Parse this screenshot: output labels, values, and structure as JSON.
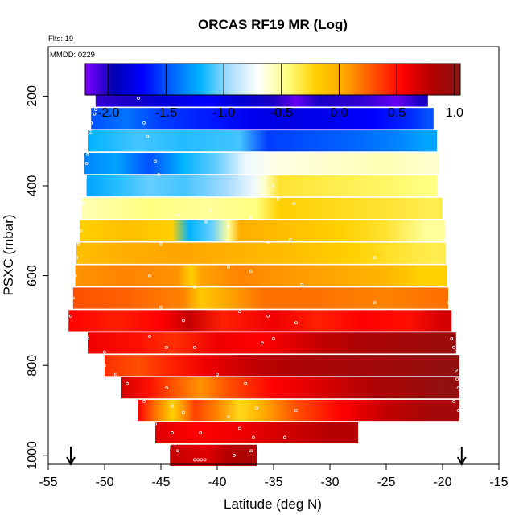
{
  "chart_data": {
    "type": "heatmap",
    "title": "ORCAS RF19 MR (Log)",
    "flights_label": "Flts: 19",
    "date_label": "MMDD: 0229",
    "xlabel": "Latitude (deg N)",
    "ylabel": "PSXC (mbar)",
    "xlim": [
      -55,
      -15
    ],
    "ylim": [
      1020,
      90
    ],
    "x_ticks": [
      -55,
      -50,
      -45,
      -40,
      -35,
      -30,
      -25,
      -20,
      -15
    ],
    "x_tick_labels": [
      "-55",
      "-50",
      "-45",
      "-40",
      "-35",
      "-30",
      "-25",
      "-20",
      "-15"
    ],
    "y_ticks": [
      200,
      400,
      600,
      800,
      1000
    ],
    "y_tick_labels": [
      "200",
      "400",
      "600",
      "800",
      "1000"
    ],
    "colorbar": {
      "min": -2.2,
      "max": 1.05,
      "ticks": [
        -2.0,
        -1.5,
        -1.0,
        -0.5,
        0.0,
        0.5,
        1.0
      ],
      "tick_labels": [
        "-2.0",
        "-1.5",
        "-1.0",
        "-0.5",
        "0.0",
        "0.5",
        "1.0"
      ],
      "colors": [
        "#7f00ff",
        "#0000b4",
        "#0000ff",
        "#0064ff",
        "#00b4ff",
        "#aaddff",
        "#ffffff",
        "#ffff80",
        "#ffd000",
        "#ffa500",
        "#ff5000",
        "#ff0000",
        "#b40000",
        "#8c1414"
      ]
    },
    "arrows": [
      -53,
      -18.3
    ],
    "rows": [
      {
        "p": 200,
        "lat_min": -50.8,
        "lat_max": -21.3,
        "segments": [
          [
            -50.8,
            -2.05
          ],
          [
            -48,
            -2.0
          ],
          [
            -45,
            -1.85
          ],
          [
            -41,
            -1.7
          ],
          [
            -38,
            -1.85
          ],
          [
            -35,
            -2.0
          ],
          [
            -33,
            -2.15
          ],
          [
            -31,
            -2.0
          ],
          [
            -27,
            -2.05
          ],
          [
            -24,
            -2.15
          ],
          [
            -22,
            -2.0
          ]
        ]
      },
      {
        "p": 250,
        "lat_min": -51.2,
        "lat_max": -20.8,
        "segments": [
          [
            -51.2,
            -1.5
          ],
          [
            -48,
            -1.4
          ],
          [
            -45,
            -1.55
          ],
          [
            -40,
            -1.65
          ],
          [
            -37,
            -1.75
          ],
          [
            -34,
            -1.8
          ],
          [
            -30,
            -1.75
          ],
          [
            -26,
            -1.7
          ],
          [
            -23,
            -1.6
          ],
          [
            -21.3,
            -1.5
          ]
        ]
      },
      {
        "p": 300,
        "lat_min": -51.5,
        "lat_max": -20.5,
        "segments": [
          [
            -51.5,
            -1.2
          ],
          [
            -47,
            -1.1
          ],
          [
            -43,
            -1.15
          ],
          [
            -38,
            -1.1
          ],
          [
            -35.5,
            -1.55
          ],
          [
            -32,
            -1.5
          ],
          [
            -28,
            -1.45
          ],
          [
            -24,
            -1.35
          ],
          [
            -21.5,
            -1.25
          ]
        ]
      },
      {
        "p": 350,
        "lat_min": -51.8,
        "lat_max": -20.3,
        "segments": [
          [
            -51.8,
            -1.35
          ],
          [
            -49,
            -1.25
          ],
          [
            -46,
            -1.5
          ],
          [
            -43,
            -1.2
          ],
          [
            -40,
            -1.05
          ],
          [
            -37.5,
            -0.75
          ],
          [
            -35,
            -0.65
          ],
          [
            -30,
            -0.6
          ],
          [
            -25,
            -0.55
          ],
          [
            -21.5,
            -0.6
          ]
        ]
      },
      {
        "p": 400,
        "lat_min": -51.6,
        "lat_max": -20.5,
        "segments": [
          [
            -51.6,
            -1.25
          ],
          [
            -49,
            -1.15
          ],
          [
            -46,
            -1.05
          ],
          [
            -43,
            -1.1
          ],
          [
            -39,
            -0.95
          ],
          [
            -36.8,
            -0.75
          ],
          [
            -35.8,
            -0.6
          ],
          [
            -34.5,
            -0.3
          ],
          [
            -30,
            -0.35
          ],
          [
            -25,
            -0.4
          ],
          [
            -22,
            -0.45
          ]
        ]
      },
      {
        "p": 450,
        "lat_min": -52.0,
        "lat_max": -20.0,
        "segments": [
          [
            -52.0,
            -0.55
          ],
          [
            -46,
            -0.45
          ],
          [
            -41,
            -0.5
          ],
          [
            -36.5,
            -0.45
          ],
          [
            -34.5,
            -0.2
          ],
          [
            -30,
            -0.25
          ],
          [
            -25,
            -0.3
          ],
          [
            -21.5,
            -0.35
          ]
        ]
      },
      {
        "p": 500,
        "lat_min": -52.2,
        "lat_max": -19.8,
        "segments": [
          [
            -52.2,
            -0.2
          ],
          [
            -48,
            -0.1
          ],
          [
            -44,
            -0.2
          ],
          [
            -42.5,
            -1.2
          ],
          [
            -40.5,
            -1.05
          ],
          [
            -39,
            -0.5
          ],
          [
            -38,
            0.0
          ],
          [
            -34,
            -0.1
          ],
          [
            -29,
            -0.2
          ],
          [
            -25,
            -0.3
          ],
          [
            -21.5,
            -0.5
          ]
        ]
      },
      {
        "p": 550,
        "lat_min": -52.5,
        "lat_max": -19.7,
        "segments": [
          [
            -52.5,
            -0.1
          ],
          [
            -48,
            0.0
          ],
          [
            -43,
            0.05
          ],
          [
            -40,
            0.0
          ],
          [
            -37,
            -0.05
          ],
          [
            -33,
            -0.1
          ],
          [
            -28,
            -0.2
          ],
          [
            -24,
            -0.3
          ],
          [
            -21,
            -0.35
          ]
        ]
      },
      {
        "p": 600,
        "lat_min": -52.6,
        "lat_max": -19.6,
        "segments": [
          [
            -52.6,
            0.1
          ],
          [
            -48,
            0.15
          ],
          [
            -43.5,
            0.1
          ],
          [
            -42.3,
            -0.2
          ],
          [
            -41.5,
            0.05
          ],
          [
            -38,
            0.15
          ],
          [
            -35,
            0.1
          ],
          [
            -30,
            0.05
          ],
          [
            -25,
            -0.05
          ],
          [
            -22,
            -0.2
          ]
        ]
      },
      {
        "p": 650,
        "lat_min": -52.8,
        "lat_max": -19.5,
        "segments": [
          [
            -52.8,
            0.3
          ],
          [
            -48,
            0.25
          ],
          [
            -43,
            0.15
          ],
          [
            -41.5,
            -0.15
          ],
          [
            -39,
            0.05
          ],
          [
            -36,
            0.2
          ],
          [
            -31,
            0.2
          ],
          [
            -25,
            0.15
          ],
          [
            -21,
            0.2
          ]
        ]
      },
      {
        "p": 700,
        "lat_min": -53.2,
        "lat_max": -19.2,
        "segments": [
          [
            -53.2,
            0.55
          ],
          [
            -49,
            0.45
          ],
          [
            -45,
            0.55
          ],
          [
            -42.5,
            0.75
          ],
          [
            -39.5,
            0.45
          ],
          [
            -35,
            0.6
          ],
          [
            -31,
            0.45
          ],
          [
            -27,
            0.55
          ],
          [
            -23,
            0.5
          ],
          [
            -20,
            0.7
          ]
        ]
      },
      {
        "p": 750,
        "lat_min": -51.5,
        "lat_max": -18.8,
        "segments": [
          [
            -51.5,
            0.6
          ],
          [
            -47,
            0.5
          ],
          [
            -44,
            0.4
          ],
          [
            -40,
            0.6
          ],
          [
            -36,
            0.55
          ],
          [
            -31,
            0.75
          ],
          [
            -27,
            0.85
          ],
          [
            -23,
            0.9
          ],
          [
            -20,
            0.95
          ]
        ]
      },
      {
        "p": 800,
        "lat_min": -50.0,
        "lat_max": -18.5,
        "segments": [
          [
            -50.0,
            0.4
          ],
          [
            -47,
            0.3
          ],
          [
            -44,
            0.45
          ],
          [
            -41,
            0.6
          ],
          [
            -37,
            0.75
          ],
          [
            -33,
            0.85
          ],
          [
            -28,
            0.9
          ],
          [
            -23,
            0.95
          ],
          [
            -20,
            1.0
          ]
        ]
      },
      {
        "p": 850,
        "lat_min": -48.5,
        "lat_max": -18.5,
        "segments": [
          [
            -48.5,
            0.7
          ],
          [
            -46,
            0.5
          ],
          [
            -44,
            0.3
          ],
          [
            -41.5,
            0.1
          ],
          [
            -39,
            0.3
          ],
          [
            -35,
            0.55
          ],
          [
            -30,
            0.7
          ],
          [
            -26,
            0.85
          ],
          [
            -22,
            0.95
          ],
          [
            -20,
            1.0
          ]
        ]
      },
      {
        "p": 900,
        "lat_min": -47.0,
        "lat_max": -18.5,
        "segments": [
          [
            -47.0,
            0.55
          ],
          [
            -45.5,
            0.2
          ],
          [
            -44,
            -0.2
          ],
          [
            -43,
            0.1
          ],
          [
            -42,
            0.35
          ],
          [
            -40,
            0.15
          ],
          [
            -38,
            -0.25
          ],
          [
            -36,
            0.0
          ],
          [
            -33,
            0.3
          ],
          [
            -29,
            0.55
          ],
          [
            -25,
            0.75
          ],
          [
            -21,
            0.9
          ]
        ]
      },
      {
        "p": 950,
        "lat_min": -45.5,
        "lat_max": -27.5,
        "segments": [
          [
            -45.5,
            0.65
          ],
          [
            -42,
            0.55
          ],
          [
            -38,
            0.6
          ],
          [
            -34,
            0.7
          ],
          [
            -30,
            0.8
          ]
        ]
      },
      {
        "p": 1000,
        "lat_min": -44.2,
        "lat_max": -36.5,
        "segments": [
          [
            -44.2,
            0.75
          ],
          [
            -41,
            0.65
          ],
          [
            -39,
            0.8
          ],
          [
            -37.5,
            0.85
          ]
        ]
      }
    ],
    "sample_points": [
      [
        -50.6,
        190
      ],
      [
        -50.3,
        190
      ],
      [
        -50.0,
        190
      ],
      [
        -49.7,
        190
      ],
      [
        -49.4,
        190
      ],
      [
        -49.1,
        190
      ],
      [
        -48.8,
        190
      ],
      [
        -48.5,
        190
      ],
      [
        -48.2,
        190
      ],
      [
        -47.9,
        190
      ],
      [
        -47.6,
        190
      ],
      [
        -47.3,
        190
      ],
      [
        -34.8,
        190
      ],
      [
        -34.5,
        190
      ],
      [
        -34.2,
        190
      ],
      [
        -33.9,
        190
      ],
      [
        -33.6,
        190
      ],
      [
        -33.3,
        190
      ],
      [
        -33.0,
        190
      ],
      [
        -32.7,
        190
      ],
      [
        -32.4,
        190
      ],
      [
        -32.1,
        190
      ],
      [
        -31.8,
        190
      ],
      [
        -31.5,
        190
      ],
      [
        -31.2,
        190
      ],
      [
        -30.9,
        190
      ],
      [
        -30.6,
        190
      ],
      [
        -30.3,
        190
      ],
      [
        -30.0,
        190
      ],
      [
        -29.7,
        190
      ],
      [
        -29.4,
        190
      ],
      [
        -29.1,
        190
      ],
      [
        -28.8,
        190
      ],
      [
        -28.5,
        190
      ],
      [
        -28.2,
        190
      ],
      [
        -27.9,
        190
      ],
      [
        -27.6,
        190
      ],
      [
        -27.3,
        190
      ],
      [
        -27.0,
        190
      ],
      [
        -26.7,
        190
      ],
      [
        -26.4,
        190
      ],
      [
        -26.1,
        190
      ],
      [
        -25.8,
        190
      ],
      [
        -25.5,
        190
      ],
      [
        -25.2,
        190
      ],
      [
        -24.9,
        190
      ],
      [
        -24.6,
        190
      ],
      [
        -24.3,
        190
      ],
      [
        -24.0,
        190
      ],
      [
        -23.7,
        190
      ],
      [
        -23.4,
        190
      ],
      [
        -23.1,
        190
      ],
      [
        -22.8,
        190
      ],
      [
        -22.5,
        190
      ],
      [
        -22.2,
        190
      ],
      [
        -47.0,
        205
      ],
      [
        -50.8,
        230
      ],
      [
        -50.9,
        240
      ],
      [
        -51.2,
        260
      ],
      [
        -51.3,
        280
      ],
      [
        -46.5,
        260
      ],
      [
        -46.2,
        290
      ],
      [
        -51.5,
        330
      ],
      [
        -51.6,
        350
      ],
      [
        -45.5,
        345
      ],
      [
        -51.7,
        380
      ],
      [
        -51.8,
        400
      ],
      [
        -45.2,
        375
      ],
      [
        -36.5,
        395
      ],
      [
        -35.0,
        400
      ],
      [
        -34.6,
        430
      ],
      [
        -33.2,
        440
      ],
      [
        -51.9,
        440
      ],
      [
        -52.0,
        460
      ],
      [
        -43.5,
        465
      ],
      [
        -41.0,
        480
      ],
      [
        -39.0,
        490
      ],
      [
        -37.0,
        470
      ],
      [
        -40.6,
        455
      ],
      [
        -52.1,
        500
      ],
      [
        -52.3,
        530
      ],
      [
        -45.0,
        530
      ],
      [
        -33.5,
        520
      ],
      [
        -35.5,
        525
      ],
      [
        -19.8,
        520
      ],
      [
        -52.5,
        560
      ],
      [
        -52.6,
        600
      ],
      [
        -46.0,
        600
      ],
      [
        -39.0,
        580
      ],
      [
        -37.0,
        590
      ],
      [
        -32.5,
        620
      ],
      [
        -42.0,
        625
      ],
      [
        -26.0,
        560
      ],
      [
        -52.8,
        650
      ],
      [
        -53.0,
        690
      ],
      [
        -45.0,
        670
      ],
      [
        -43.0,
        700
      ],
      [
        -38.0,
        680
      ],
      [
        -35.5,
        690
      ],
      [
        -33.0,
        705
      ],
      [
        -26.0,
        660
      ],
      [
        -19.5,
        660
      ],
      [
        -51.5,
        740
      ],
      [
        -50.0,
        770
      ],
      [
        -46.0,
        735
      ],
      [
        -44.5,
        760
      ],
      [
        -42.0,
        760
      ],
      [
        -36.0,
        750
      ],
      [
        -35.0,
        740
      ],
      [
        -19.2,
        740
      ],
      [
        -19.0,
        760
      ],
      [
        -50.0,
        800
      ],
      [
        -49.0,
        820
      ],
      [
        -48.0,
        840
      ],
      [
        -44.5,
        850
      ],
      [
        -40.0,
        820
      ],
      [
        -37.5,
        840
      ],
      [
        -18.8,
        810
      ],
      [
        -18.7,
        830
      ],
      [
        -18.6,
        850
      ],
      [
        -19.0,
        880
      ],
      [
        -18.6,
        900
      ],
      [
        -46.5,
        880
      ],
      [
        -44.0,
        890
      ],
      [
        -43.0,
        905
      ],
      [
        -39.0,
        915
      ],
      [
        -36.5,
        895
      ],
      [
        -33.0,
        900
      ],
      [
        -45.5,
        930
      ],
      [
        -44.0,
        950
      ],
      [
        -41.5,
        950
      ],
      [
        -38.0,
        940
      ],
      [
        -36.8,
        960
      ],
      [
        -34.0,
        960
      ],
      [
        -44.2,
        980
      ],
      [
        -43.5,
        990
      ],
      [
        -42.0,
        1010
      ],
      [
        -41.7,
        1010
      ],
      [
        -41.4,
        1010
      ],
      [
        -41.1,
        1010
      ],
      [
        -38.5,
        1000
      ],
      [
        -37.0,
        990
      ]
    ]
  }
}
